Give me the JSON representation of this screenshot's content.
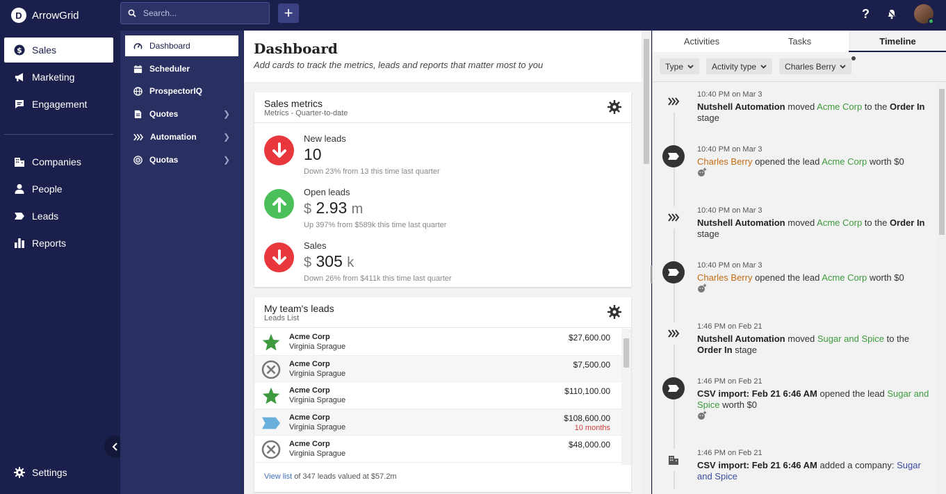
{
  "app": {
    "name": "ArrowGrid",
    "logo_letter": "D"
  },
  "search": {
    "placeholder": "Search..."
  },
  "top_actions": {
    "add": "+",
    "help": "?"
  },
  "nav": {
    "items": [
      {
        "label": "Sales",
        "icon": "dollar-icon",
        "active": true
      },
      {
        "label": "Marketing",
        "icon": "megaphone-icon"
      },
      {
        "label": "Engagement",
        "icon": "chat-icon"
      },
      {
        "label": "Companies",
        "icon": "building-icon"
      },
      {
        "label": "People",
        "icon": "person-icon"
      },
      {
        "label": "Leads",
        "icon": "tag-icon"
      },
      {
        "label": "Reports",
        "icon": "bar-chart-icon"
      }
    ],
    "settings": "Settings"
  },
  "subnav": {
    "items": [
      {
        "label": "Dashboard",
        "icon": "gauge-icon",
        "active": true
      },
      {
        "label": "Scheduler",
        "icon": "calendar-icon"
      },
      {
        "label": "ProspectorIQ",
        "icon": "globe-icon"
      },
      {
        "label": "Quotes",
        "icon": "document-icon",
        "chevron": true
      },
      {
        "label": "Automation",
        "icon": "chevrons-icon",
        "chevron": true
      },
      {
        "label": "Quotas",
        "icon": "target-icon",
        "chevron": true
      }
    ]
  },
  "main": {
    "title": "Dashboard",
    "subtitle": "Add cards to track the metrics, leads and reports that matter most to you"
  },
  "sales_metrics": {
    "title": "Sales metrics",
    "subtitle": "Metrics - Quarter-to-date",
    "metrics": [
      {
        "label": "New leads",
        "currency": "",
        "value": "10",
        "unit": "",
        "note": "Down 23% from 13 this time last quarter",
        "direction": "down"
      },
      {
        "label": "Open leads",
        "currency": "$",
        "value": "2.93",
        "unit": "m",
        "note": "Up 397% from $589k this time last quarter",
        "direction": "up"
      },
      {
        "label": "Sales",
        "currency": "$",
        "value": "305",
        "unit": "k",
        "note": "Down 26% from $411k this time last quarter",
        "direction": "down"
      }
    ]
  },
  "team_leads": {
    "title": "My team's leads",
    "subtitle": "Leads List",
    "rows": [
      {
        "company": "Acme Corp",
        "person": "Virginia Sprague",
        "amount": "$27,600.00",
        "age": "",
        "status": "won"
      },
      {
        "company": "Acme Corp",
        "person": "Virginia Sprague",
        "amount": "$7,500.00",
        "age": "",
        "status": "lost"
      },
      {
        "company": "Acme Corp",
        "person": "Virginia Sprague",
        "amount": "$110,100.00",
        "age": "",
        "status": "won"
      },
      {
        "company": "Acme Corp",
        "person": "Virginia Sprague",
        "amount": "$108,600.00",
        "age": "10 months",
        "status": "open"
      },
      {
        "company": "Acme Corp",
        "person": "Virginia Sprague",
        "amount": "$48,000.00",
        "age": "",
        "status": "lost"
      }
    ],
    "footer_link": "View list",
    "footer_text": " of 347 leads valued at $57.2m"
  },
  "right_panel": {
    "tabs": [
      {
        "label": "Activities"
      },
      {
        "label": "Tasks"
      },
      {
        "label": "Timeline",
        "active": true
      }
    ],
    "filters": [
      {
        "label": "Type"
      },
      {
        "label": "Activity type"
      },
      {
        "label": "Charles Berry"
      }
    ],
    "timeline": [
      {
        "time": "10:40 PM on Mar 3",
        "kind": "automation",
        "actor": "Nutshell Automation",
        "verb": " moved ",
        "target": "Acme Corp",
        "mid": " to the ",
        "stage": "Order In",
        "tail": " stage"
      },
      {
        "time": "10:40 PM on Mar 3",
        "kind": "lead",
        "actor": "Charles Berry",
        "verb": " opened the lead ",
        "target": "Acme Corp",
        "tail": " worth $0"
      },
      {
        "time": "10:40 PM on Mar 3",
        "kind": "automation",
        "actor": "Nutshell Automation",
        "verb": " moved ",
        "target": "Acme Corp",
        "mid": " to the ",
        "stage": "Order In",
        "tail": " stage"
      },
      {
        "time": "10:40 PM on Mar 3",
        "kind": "lead",
        "actor": "Charles Berry",
        "verb": " opened the lead ",
        "target": "Acme Corp",
        "tail": " worth $0"
      },
      {
        "time": "1:46 PM on Feb 21",
        "kind": "automation",
        "actor": "Nutshell Automation",
        "verb": " moved ",
        "target": "Sugar and Spice",
        "mid": " to the ",
        "stage": "Order In",
        "tail": " stage"
      },
      {
        "time": "1:46 PM on Feb 21",
        "kind": "csv-lead",
        "actor": "CSV import: Feb 21 6:46 AM",
        "verb": " opened the lead ",
        "target": "Sugar and Spice",
        "tail": " worth $0"
      },
      {
        "time": "1:46 PM on Feb 21",
        "kind": "csv-company",
        "actor": "CSV import: Feb 21 6:46 AM",
        "verb": " added a company: ",
        "target": "Sugar and Spice",
        "tail": ""
      }
    ]
  },
  "colors": {
    "navy": "#1b1f4b",
    "green": "#3d9b3d",
    "red": "#e8383d",
    "orange": "#c76a12"
  }
}
